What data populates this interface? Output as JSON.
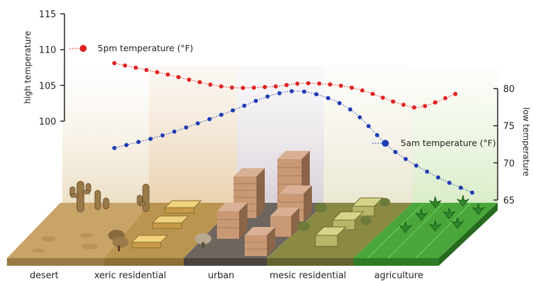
{
  "chart_data": {
    "type": "line",
    "categories": [
      "desert",
      "xeric residential",
      "urban",
      "mesic residential",
      "agriculture"
    ],
    "left_axis": {
      "label": "high temperature",
      "ticks": [
        "100",
        "105",
        "110",
        "115"
      ],
      "ylim": [
        100,
        115
      ]
    },
    "right_axis": {
      "label": "low temperature",
      "ticks": [
        "65",
        "70",
        "75",
        "80"
      ],
      "ylim": [
        65,
        80
      ]
    },
    "series": [
      {
        "name": "5pm temperature (°F)",
        "axis": "left",
        "color": "#e02020",
        "x": [
          0.2,
          0.8,
          1.5,
          2.05,
          2.5,
          3.05,
          3.6,
          3.85,
          4.25
        ],
        "y": [
          108.1,
          106.6,
          104.8,
          104.8,
          105.3,
          104.6,
          102.4,
          102.0,
          103.8
        ]
      },
      {
        "name": "5am temperature (°F)",
        "axis": "right",
        "color": "#1e3cb4",
        "x": [
          0.2,
          0.8,
          1.5,
          2.1,
          2.5,
          3.0,
          3.5,
          4.0,
          4.45
        ],
        "y": [
          72.0,
          73.8,
          76.6,
          79.2,
          79.5,
          77.2,
          71.8,
          68.3,
          66.0
        ]
      }
    ],
    "legend": [
      "5pm temperature (°F)",
      "5am temperature (°F)"
    ],
    "legend_placement": "inline, top-left and middle-right",
    "grid": false
  },
  "colors": {
    "desert": "#c9a468",
    "xeric": "#b99550",
    "urban": "#6e665e",
    "mesic": "#8a8a45",
    "agriculture": "#4aa63a",
    "building": "#c99975",
    "building_dark": "#8a6548",
    "pad": "#e8c775"
  }
}
